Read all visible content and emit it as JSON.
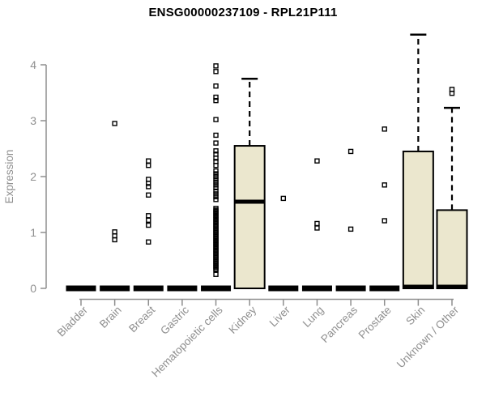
{
  "page": {
    "background": "#ffffff"
  },
  "chart_data": {
    "type": "boxplot",
    "title": "ENSG00000237109 - RPL21P111",
    "ylabel": "Expression",
    "xlabel": "",
    "yticks": [
      0,
      1,
      2,
      3,
      4
    ],
    "ylim": [
      0,
      4.6
    ],
    "grid": false,
    "legend": false,
    "axis_color": "#8f8f8f",
    "text_color": "#8f8f8f",
    "title_color": "#000000",
    "box_fill": "#EBE7CE",
    "box_stroke": "#000000",
    "categories": [
      "Bladder",
      "Brain",
      "Breast",
      "Gastric",
      "Hematopoietic cells",
      "Kidney",
      "Liver",
      "Lung",
      "Pancreas",
      "Prostate",
      "Skin",
      "Unknown / Other"
    ],
    "boxes": [
      {
        "category": "Bladder",
        "q1": 0,
        "median": 0,
        "q3": 0,
        "whisker_low": 0,
        "whisker_high": 0,
        "outliers": []
      },
      {
        "category": "Brain",
        "q1": 0,
        "median": 0,
        "q3": 0,
        "whisker_low": 0,
        "whisker_high": 0,
        "outliers": [
          2.95,
          1.01,
          0.94,
          0.87
        ]
      },
      {
        "category": "Breast",
        "q1": 0,
        "median": 0,
        "q3": 0,
        "whisker_low": 0,
        "whisker_high": 0,
        "outliers": [
          2.28,
          2.2,
          1.95,
          1.88,
          1.82,
          1.67,
          1.3,
          1.22,
          1.13,
          0.83
        ]
      },
      {
        "category": "Gastric",
        "q1": 0,
        "median": 0,
        "q3": 0,
        "whisker_low": 0,
        "whisker_high": 0,
        "outliers": []
      },
      {
        "category": "Hematopoietic cells",
        "q1": 0,
        "median": 0,
        "q3": 0,
        "whisker_low": 0,
        "whisker_high": 0,
        "outliers": [
          3.98,
          3.88,
          3.62,
          3.42,
          3.36,
          3.02,
          2.74,
          2.6,
          2.46,
          2.4,
          2.33,
          2.27,
          2.2,
          2.1,
          2.05,
          2.0,
          1.95,
          1.9,
          1.85,
          1.8,
          1.74,
          1.69,
          1.64,
          1.59,
          1.43,
          1.4,
          1.38,
          1.35,
          1.33,
          1.3,
          1.28,
          1.25,
          1.23,
          1.2,
          1.18,
          1.15,
          1.13,
          1.1,
          1.08,
          1.05,
          1.03,
          1.0,
          0.98,
          0.95,
          0.93,
          0.9,
          0.88,
          0.85,
          0.83,
          0.8,
          0.78,
          0.75,
          0.73,
          0.7,
          0.68,
          0.65,
          0.63,
          0.6,
          0.58,
          0.55,
          0.53,
          0.5,
          0.48,
          0.45,
          0.43,
          0.4,
          0.38,
          0.35,
          0.33,
          0.25
        ]
      },
      {
        "category": "Kidney",
        "q1": 0,
        "median": 1.55,
        "q3": 2.55,
        "whisker_low": 0,
        "whisker_high": 3.75,
        "outliers": []
      },
      {
        "category": "Liver",
        "q1": 0,
        "median": 0,
        "q3": 0,
        "whisker_low": 0,
        "whisker_high": 0,
        "outliers": [
          1.61
        ]
      },
      {
        "category": "Lung",
        "q1": 0,
        "median": 0,
        "q3": 0,
        "whisker_low": 0,
        "whisker_high": 0,
        "outliers": [
          2.28,
          1.16,
          1.08
        ]
      },
      {
        "category": "Pancreas",
        "q1": 0,
        "median": 0,
        "q3": 0,
        "whisker_low": 0,
        "whisker_high": 0,
        "outliers": [
          2.45,
          1.06
        ]
      },
      {
        "category": "Prostate",
        "q1": 0,
        "median": 0,
        "q3": 0,
        "whisker_low": 0,
        "whisker_high": 0,
        "outliers": [
          2.85,
          1.85,
          1.21
        ]
      },
      {
        "category": "Skin",
        "q1": 0,
        "median": 0,
        "q3": 2.45,
        "whisker_low": 0,
        "whisker_high": 4.54,
        "outliers": []
      },
      {
        "category": "Unknown / Other",
        "q1": 0,
        "median": 0,
        "q3": 1.4,
        "whisker_low": 0,
        "whisker_high": 3.23,
        "outliers": [
          3.56,
          3.49
        ]
      }
    ]
  }
}
